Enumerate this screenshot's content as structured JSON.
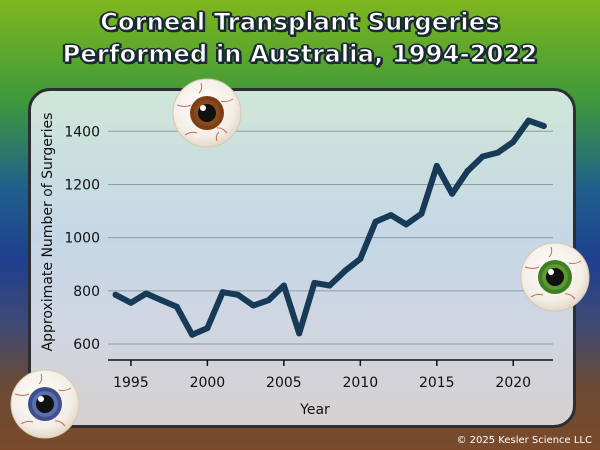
{
  "chart_data": {
    "type": "line",
    "title_lines": [
      "Corneal Transplant Surgeries",
      "Performed in Australia, 1994-2022"
    ],
    "xlabel": "Year",
    "ylabel": "Approximate Number of Surgeries",
    "x": [
      1994,
      1995,
      1996,
      1997,
      1998,
      1999,
      2000,
      2001,
      2002,
      2003,
      2004,
      2005,
      2006,
      2007,
      2008,
      2009,
      2010,
      2011,
      2012,
      2013,
      2014,
      2015,
      2016,
      2017,
      2018,
      2019,
      2020,
      2021,
      2022
    ],
    "series": [
      {
        "values": [
          785,
          755,
          790,
          765,
          740,
          635,
          660,
          795,
          785,
          745,
          765,
          820,
          640,
          830,
          820,
          875,
          920,
          1060,
          1085,
          1050,
          1090,
          1270,
          1165,
          1250,
          1305,
          1320,
          1360,
          1440,
          1420
        ],
        "color": "#173a57"
      }
    ],
    "x_ticks": [
      1995,
      2000,
      2005,
      2010,
      2015,
      2020
    ],
    "y_ticks": [
      600,
      800,
      1000,
      1200,
      1400
    ],
    "xlim": [
      1993.5,
      2022.6
    ],
    "ylim": [
      540,
      1480
    ],
    "grid": "horizontal"
  },
  "copyright": "© 2025 Kesler Science LLC",
  "icons": [
    "brown-eyeball-icon",
    "green-eyeball-icon",
    "blue-eyeball-icon"
  ]
}
